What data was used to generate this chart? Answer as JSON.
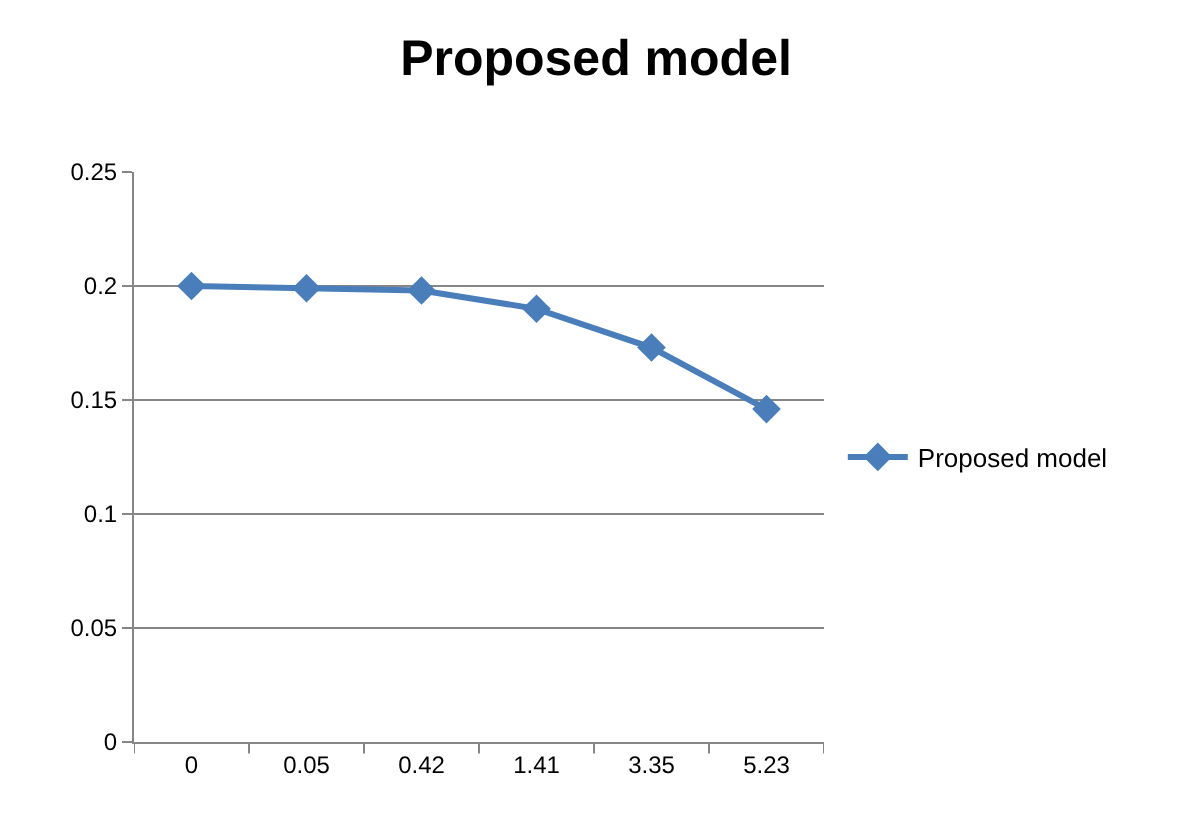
{
  "chart_data": {
    "type": "line",
    "title": "Proposed model",
    "categories": [
      "0",
      "0.05",
      "0.42",
      "1.41",
      "3.35",
      "5.23"
    ],
    "series": [
      {
        "name": "Proposed model",
        "color": "#4a7ebb",
        "values": [
          0.2,
          0.199,
          0.198,
          0.19,
          0.173,
          0.146
        ]
      }
    ],
    "ylim": [
      0,
      0.25
    ],
    "yticks": [
      0,
      0.05,
      0.1,
      0.15,
      0.2,
      0.25
    ],
    "grid": "y",
    "legend": "right",
    "marker": "diamond",
    "line_style": "solid"
  }
}
